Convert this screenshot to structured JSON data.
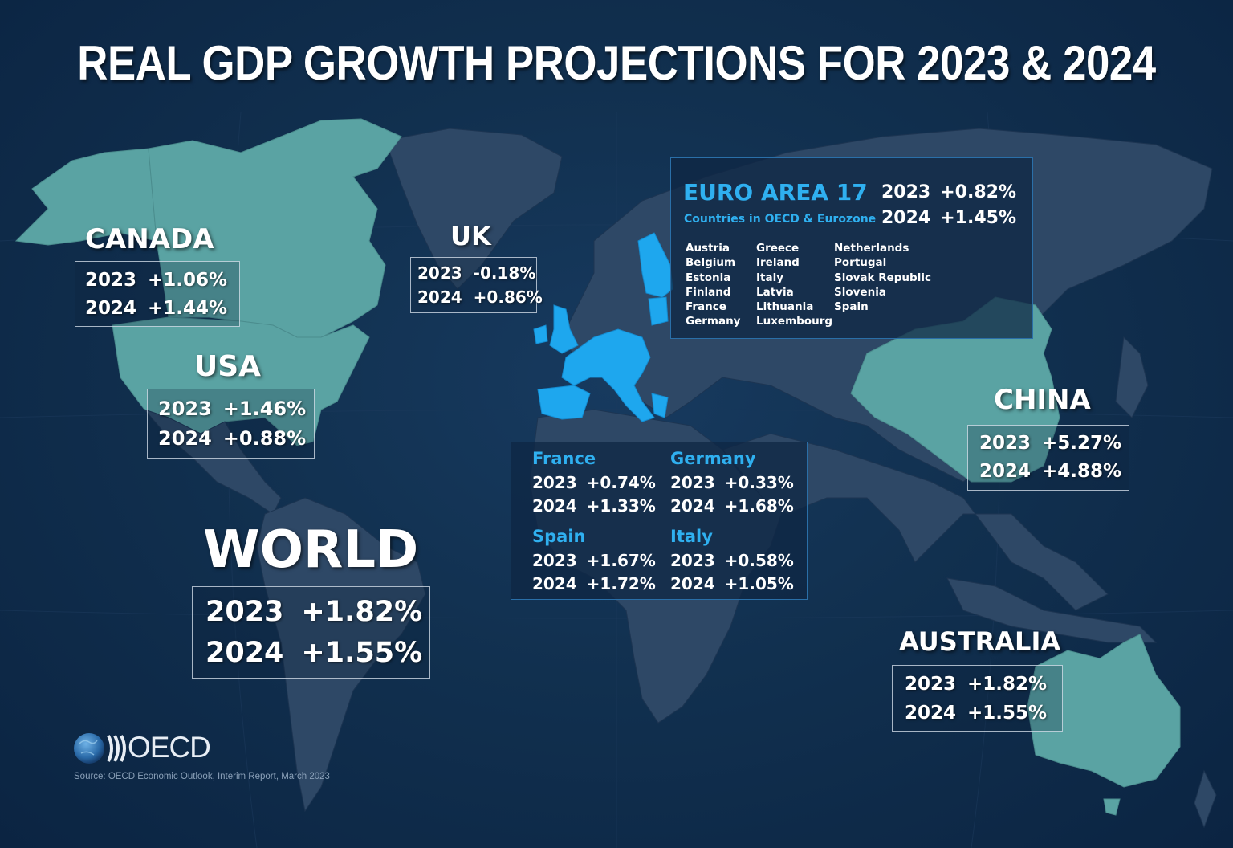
{
  "title": "REAL GDP GROWTH PROJECTIONS FOR 2023 & 2024",
  "regions": {
    "canada": {
      "name": "CANADA",
      "y2023_label": "2023",
      "y2023": "+1.06%",
      "y2024_label": "2024",
      "y2024": "+1.44%"
    },
    "usa": {
      "name": "USA",
      "y2023_label": "2023",
      "y2023": "+1.46%",
      "y2024_label": "2024",
      "y2024": "+0.88%"
    },
    "uk": {
      "name": "UK",
      "y2023_label": "2023",
      "y2023": "-0.18%",
      "y2024_label": "2024",
      "y2024": "+0.86%"
    },
    "china": {
      "name": "CHINA",
      "y2023_label": "2023",
      "y2023": "+5.27%",
      "y2024_label": "2024",
      "y2024": "+4.88%"
    },
    "australia": {
      "name": "AUSTRALIA",
      "y2023_label": "2023",
      "y2023": "+1.82%",
      "y2024_label": "2024",
      "y2024": "+1.55%"
    },
    "world": {
      "name": "WORLD",
      "y2023_label": "2023",
      "y2023": "+1.82%",
      "y2024_label": "2024",
      "y2024": "+1.55%"
    }
  },
  "euro_area": {
    "title": "EURO AREA 17",
    "subtitle": "Countries in OECD & Eurozone",
    "y2023_label": "2023",
    "y2023": "+0.82%",
    "y2024_label": "2024",
    "y2024": "+1.45%",
    "countries_col1": [
      "Austria",
      "Belgium",
      "Estonia",
      "Finland",
      "France",
      "Germany"
    ],
    "countries_col2": [
      "Greece",
      "Ireland",
      "Italy",
      "Latvia",
      "Lithuania",
      "Luxembourg"
    ],
    "countries_col3": [
      "Netherlands",
      "Portugal",
      "Slovak Republic",
      "Slovenia",
      "Spain"
    ]
  },
  "euro_details": {
    "france": {
      "name": "France",
      "y2023_label": "2023",
      "y2023": "+0.74%",
      "y2024_label": "2024",
      "y2024": "+1.33%"
    },
    "germany": {
      "name": "Germany",
      "y2023_label": "2023",
      "y2023": "+0.33%",
      "y2024_label": "2024",
      "y2024": "+1.68%"
    },
    "spain": {
      "name": "Spain",
      "y2023_label": "2023",
      "y2023": "+1.67%",
      "y2024_label": "2024",
      "y2024": "+1.72%"
    },
    "italy": {
      "name": "Italy",
      "y2023_label": "2023",
      "y2023": "+0.58%",
      "y2024_label": "2024",
      "y2024": "+1.05%"
    }
  },
  "logo_text": "OECD",
  "source": "Source: OECD Economic Outlook, Interim Report, March 2023",
  "colors": {
    "background": "#0f2a4a",
    "land": "#2e4866",
    "highlight_teal": "#5aa3a3",
    "highlight_eurozone": "#1ea7ee",
    "accent_text": "#2fb0f0"
  }
}
